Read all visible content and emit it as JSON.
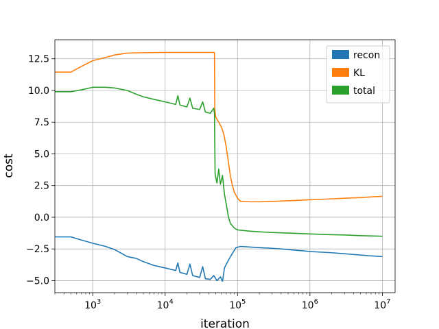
{
  "chart_data": {
    "type": "line",
    "title": "",
    "xlabel": "iteration",
    "ylabel": "cost",
    "xscale": "log",
    "xlim": [
      300,
      15000000
    ],
    "ylim": [
      -5.95,
      14.0
    ],
    "grid": true,
    "legend_position": "top-right",
    "x_ticks": [
      {
        "value": 1000,
        "base": "10",
        "exp": "3"
      },
      {
        "value": 10000,
        "base": "10",
        "exp": "4"
      },
      {
        "value": 100000,
        "base": "10",
        "exp": "5"
      },
      {
        "value": 1000000,
        "base": "10",
        "exp": "6"
      },
      {
        "value": 10000000,
        "base": "10",
        "exp": "7"
      }
    ],
    "y_ticks": [
      {
        "value": -5.0,
        "label": "−5.0"
      },
      {
        "value": -2.5,
        "label": "−2.5"
      },
      {
        "value": 0.0,
        "label": "0.0"
      },
      {
        "value": 2.5,
        "label": "2.5"
      },
      {
        "value": 5.0,
        "label": "5.0"
      },
      {
        "value": 7.5,
        "label": "7.5"
      },
      {
        "value": 10.0,
        "label": "10.0"
      },
      {
        "value": 12.5,
        "label": "12.5"
      }
    ],
    "series": [
      {
        "name": "recon",
        "color": "#1f77b4",
        "points": [
          [
            300,
            -1.55
          ],
          [
            500,
            -1.55
          ],
          [
            700,
            -1.8
          ],
          [
            1000,
            -2.05
          ],
          [
            1500,
            -2.3
          ],
          [
            2000,
            -2.55
          ],
          [
            3000,
            -3.1
          ],
          [
            4000,
            -3.25
          ],
          [
            5000,
            -3.5
          ],
          [
            7000,
            -3.8
          ],
          [
            10000,
            -4.0
          ],
          [
            14000,
            -4.2
          ],
          [
            15000,
            -3.6
          ],
          [
            16000,
            -4.35
          ],
          [
            20000,
            -4.5
          ],
          [
            22000,
            -3.7
          ],
          [
            24000,
            -4.6
          ],
          [
            30000,
            -4.75
          ],
          [
            33000,
            -3.9
          ],
          [
            36000,
            -4.85
          ],
          [
            42000,
            -4.9
          ],
          [
            47000,
            -4.6
          ],
          [
            52000,
            -5.0
          ],
          [
            58000,
            -4.7
          ],
          [
            62000,
            -5.05
          ],
          [
            66000,
            -4.0
          ],
          [
            70000,
            -3.7
          ],
          [
            80000,
            -3.1
          ],
          [
            95000,
            -2.4
          ],
          [
            110000,
            -2.3
          ],
          [
            150000,
            -2.35
          ],
          [
            200000,
            -2.4
          ],
          [
            300000,
            -2.45
          ],
          [
            500000,
            -2.55
          ],
          [
            700000,
            -2.62
          ],
          [
            1000000,
            -2.7
          ],
          [
            2000000,
            -2.8
          ],
          [
            3000000,
            -2.88
          ],
          [
            5000000,
            -2.98
          ],
          [
            7000000,
            -3.05
          ],
          [
            10000000,
            -3.1
          ]
        ]
      },
      {
        "name": "KL",
        "color": "#ff7f0e",
        "points": [
          [
            300,
            11.45
          ],
          [
            500,
            11.45
          ],
          [
            700,
            11.9
          ],
          [
            1000,
            12.35
          ],
          [
            1500,
            12.6
          ],
          [
            2000,
            12.8
          ],
          [
            3000,
            12.95
          ],
          [
            5000,
            12.98
          ],
          [
            10000,
            13.0
          ],
          [
            20000,
            13.0
          ],
          [
            40000,
            13.0
          ],
          [
            48000,
            13.0
          ],
          [
            48500,
            8.5
          ],
          [
            50000,
            7.9
          ],
          [
            55000,
            7.5
          ],
          [
            60000,
            7.1
          ],
          [
            65000,
            6.5
          ],
          [
            70000,
            5.5
          ],
          [
            75000,
            4.3
          ],
          [
            80000,
            3.2
          ],
          [
            85000,
            2.5
          ],
          [
            90000,
            2.0
          ],
          [
            100000,
            1.5
          ],
          [
            110000,
            1.25
          ],
          [
            150000,
            1.22
          ],
          [
            200000,
            1.22
          ],
          [
            300000,
            1.25
          ],
          [
            500000,
            1.3
          ],
          [
            1000000,
            1.38
          ],
          [
            2000000,
            1.45
          ],
          [
            3000000,
            1.5
          ],
          [
            5000000,
            1.55
          ],
          [
            7000000,
            1.6
          ],
          [
            10000000,
            1.65
          ]
        ]
      },
      {
        "name": "total",
        "color": "#2ca02c",
        "points": [
          [
            300,
            9.9
          ],
          [
            500,
            9.9
          ],
          [
            700,
            10.05
          ],
          [
            1000,
            10.25
          ],
          [
            1500,
            10.25
          ],
          [
            2000,
            10.2
          ],
          [
            3000,
            10.0
          ],
          [
            4000,
            9.7
          ],
          [
            5000,
            9.5
          ],
          [
            7000,
            9.3
          ],
          [
            10000,
            9.1
          ],
          [
            14000,
            8.9
          ],
          [
            15000,
            9.6
          ],
          [
            16000,
            8.85
          ],
          [
            20000,
            8.7
          ],
          [
            22000,
            9.4
          ],
          [
            24000,
            8.6
          ],
          [
            30000,
            8.5
          ],
          [
            33000,
            9.1
          ],
          [
            36000,
            8.3
          ],
          [
            42000,
            8.2
          ],
          [
            47000,
            8.6
          ],
          [
            48000,
            8.2
          ],
          [
            49000,
            3.4
          ],
          [
            52000,
            2.7
          ],
          [
            55000,
            3.8
          ],
          [
            58000,
            2.6
          ],
          [
            62000,
            3.3
          ],
          [
            66000,
            1.8
          ],
          [
            70000,
            1.0
          ],
          [
            75000,
            0.0
          ],
          [
            80000,
            -0.5
          ],
          [
            90000,
            -0.85
          ],
          [
            100000,
            -1.0
          ],
          [
            150000,
            -1.1
          ],
          [
            200000,
            -1.15
          ],
          [
            300000,
            -1.2
          ],
          [
            500000,
            -1.25
          ],
          [
            1000000,
            -1.32
          ],
          [
            2000000,
            -1.38
          ],
          [
            3000000,
            -1.4
          ],
          [
            5000000,
            -1.45
          ],
          [
            7000000,
            -1.47
          ],
          [
            10000000,
            -1.5
          ]
        ]
      }
    ]
  }
}
